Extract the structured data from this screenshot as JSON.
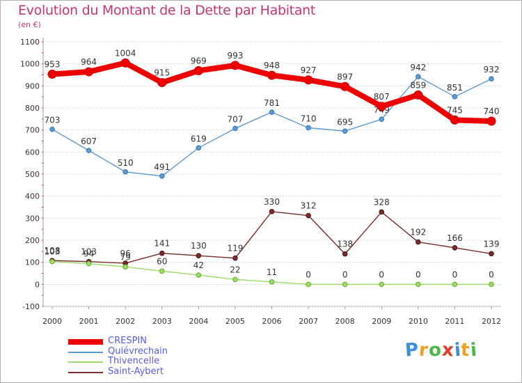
{
  "header": {
    "title": "Evolution du Montant de la Dette par Habitant",
    "subtitle": "(en €)"
  },
  "logo": {
    "letters": [
      "P",
      "r",
      "o",
      "x",
      "i",
      "t",
      "i"
    ],
    "colors": [
      "#3a8fd8",
      "#f0a020",
      "#4cb848",
      "#e04030",
      "#3a8fd8",
      "#f0a020",
      "#4cb848"
    ]
  },
  "chart_data": {
    "type": "line",
    "title": "Evolution du Montant de la Dette par Habitant",
    "subtitle": "(en €)",
    "x": [
      "2000",
      "2001",
      "2002",
      "2003",
      "2004",
      "2005",
      "2006",
      "2007",
      "2008",
      "2009",
      "2010",
      "2011",
      "2012"
    ],
    "ylim": [
      -100,
      1100
    ],
    "yticks": [
      -100,
      0,
      100,
      200,
      300,
      400,
      500,
      600,
      700,
      800,
      900,
      1000,
      1100
    ],
    "grid": "horizontal",
    "legend_position": "bottom-left",
    "series": [
      {
        "name": "CRESPIN",
        "color": "#ee0000",
        "values": [
          953,
          964,
          1004,
          915,
          969,
          993,
          948,
          927,
          897,
          807,
          859,
          745,
          740
        ]
      },
      {
        "name": "Quiévrechain",
        "color": "#5b9bd5",
        "values": [
          703,
          607,
          510,
          491,
          619,
          707,
          781,
          710,
          695,
          749,
          942,
          851,
          932
        ]
      },
      {
        "name": "Thivencelle",
        "color": "#99dd66",
        "values": [
          103,
          94,
          79,
          60,
          42,
          22,
          11,
          0,
          0,
          0,
          0,
          0,
          0
        ]
      },
      {
        "name": "Saint-Aybert",
        "color": "#7a2a2a",
        "values": [
          108,
          103,
          96,
          141,
          130,
          119,
          330,
          312,
          138,
          328,
          192,
          166,
          139
        ]
      }
    ]
  }
}
